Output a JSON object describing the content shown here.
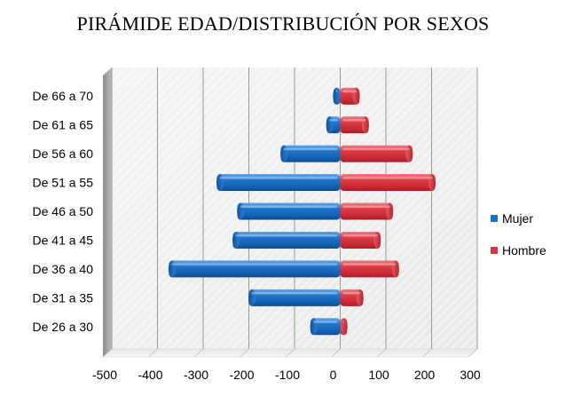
{
  "chart_data": {
    "type": "bar",
    "orientation": "horizontal",
    "title": "PIRÁMIDE EDAD/DISTRIBUCIÓN POR SEXOS",
    "categories": [
      "De 66 a 70",
      "De 61 a 65",
      "De 56 a 60",
      "De 51 a 55",
      "De 46 a 50",
      "De 41 a 45",
      "De 36 a 40",
      "De 31 a 35",
      "De 26 a 30"
    ],
    "series": [
      {
        "name": "Mujer",
        "color": "#1a6fc4",
        "values": [
          -15,
          -30,
          -130,
          -270,
          -225,
          -235,
          -375,
          -200,
          -65
        ]
      },
      {
        "name": "Hombre",
        "color": "#d9353e",
        "values": [
          42,
          62,
          158,
          208,
          115,
          88,
          128,
          50,
          15
        ]
      }
    ],
    "xlim": [
      -500,
      300
    ],
    "xticks": [
      -500,
      -400,
      -300,
      -200,
      -100,
      0,
      100,
      200,
      300
    ],
    "grid": true,
    "legend_position": "right"
  }
}
